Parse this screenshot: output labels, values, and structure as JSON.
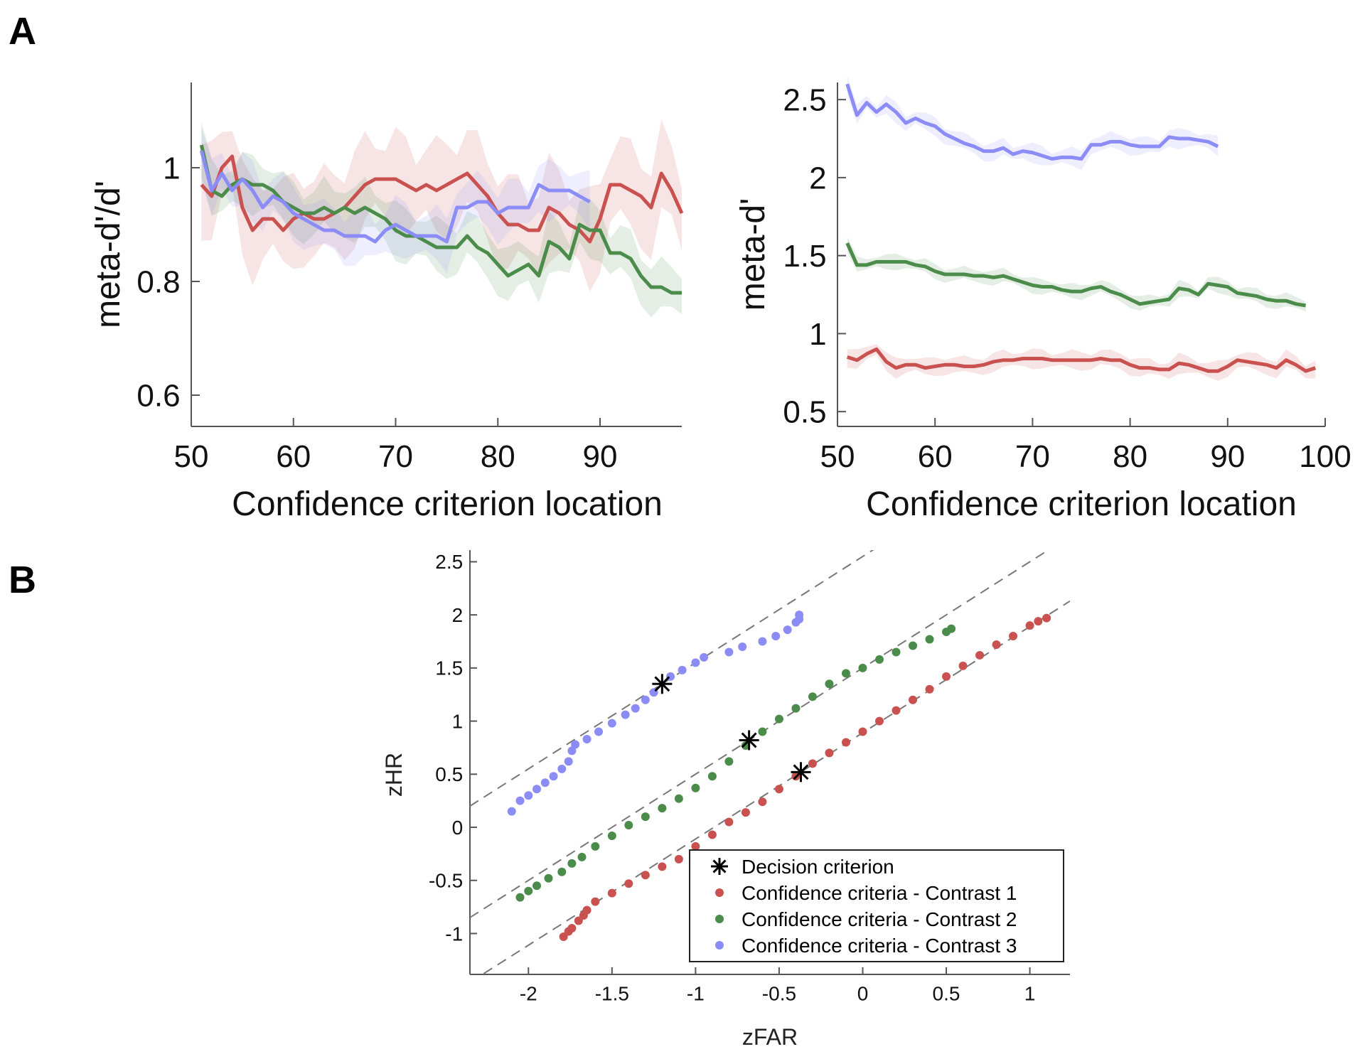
{
  "panels": {
    "a": "A",
    "b": "B"
  },
  "colors": {
    "contrast1": "#c9514f",
    "contrast2": "#4b8c4b",
    "contrast3": "#8c8cf7",
    "axis": "#444444"
  },
  "chart_data": [
    {
      "type": "line",
      "title": "",
      "xlabel": "Confidence criterion location",
      "ylabel": "meta-d'/d'",
      "xlim": [
        50,
        98
      ],
      "ylim": [
        0.545,
        1.15
      ],
      "xticks": [
        50,
        60,
        70,
        80,
        90
      ],
      "yticks": [
        0.6,
        0.8,
        1
      ],
      "x_start": 51,
      "series": [
        {
          "name": "Contrast 1",
          "color_key": "contrast1",
          "ci": 0.07,
          "values": [
            0.97,
            0.95,
            1.0,
            1.02,
            0.93,
            0.89,
            0.91,
            0.91,
            0.89,
            0.91,
            0.92,
            0.91,
            0.91,
            0.92,
            0.93,
            0.95,
            0.97,
            0.98,
            0.98,
            0.98,
            0.97,
            0.96,
            0.97,
            0.96,
            0.97,
            0.98,
            0.99,
            0.97,
            0.95,
            0.92,
            0.9,
            0.9,
            0.89,
            0.89,
            0.93,
            0.92,
            0.9,
            0.89,
            0.87,
            0.91,
            0.97,
            0.97,
            0.96,
            0.95,
            0.93,
            0.99,
            0.96,
            0.92
          ]
        },
        {
          "name": "Contrast 2",
          "color_key": "contrast2",
          "ci": 0.04,
          "values": [
            1.04,
            0.96,
            0.95,
            0.97,
            0.98,
            0.97,
            0.97,
            0.96,
            0.94,
            0.93,
            0.92,
            0.92,
            0.93,
            0.92,
            0.93,
            0.92,
            0.93,
            0.92,
            0.91,
            0.89,
            0.88,
            0.88,
            0.87,
            0.86,
            0.86,
            0.86,
            0.88,
            0.86,
            0.85,
            0.83,
            0.81,
            0.82,
            0.83,
            0.81,
            0.87,
            0.86,
            0.84,
            0.9,
            0.89,
            0.89,
            0.85,
            0.85,
            0.84,
            0.81,
            0.79,
            0.79,
            0.78,
            0.78
          ]
        },
        {
          "name": "Contrast 3",
          "color_key": "contrast3",
          "ci": 0.04,
          "values": [
            1.03,
            0.96,
            0.99,
            0.96,
            0.98,
            0.96,
            0.93,
            0.95,
            0.94,
            0.92,
            0.91,
            0.9,
            0.89,
            0.89,
            0.88,
            0.88,
            0.88,
            0.87,
            0.89,
            0.9,
            0.89,
            0.88,
            0.88,
            0.88,
            0.87,
            0.93,
            0.93,
            0.94,
            0.94,
            0.92,
            0.93,
            0.93,
            0.93,
            0.97,
            0.96,
            0.96,
            0.96,
            0.95,
            0.94
          ]
        }
      ]
    },
    {
      "type": "line",
      "title": "",
      "xlabel": "Confidence criterion location",
      "ylabel": "meta-d'",
      "xlim": [
        50,
        100
      ],
      "ylim": [
        0.405,
        2.61
      ],
      "xticks": [
        50,
        60,
        70,
        80,
        90,
        100
      ],
      "yticks": [
        0.5,
        1,
        1.5,
        2,
        2.5
      ],
      "x_start": 51,
      "series": [
        {
          "name": "Contrast 1",
          "color_key": "contrast1",
          "ci": 0.05,
          "values": [
            0.85,
            0.83,
            0.87,
            0.9,
            0.82,
            0.78,
            0.8,
            0.8,
            0.78,
            0.79,
            0.8,
            0.8,
            0.79,
            0.79,
            0.8,
            0.82,
            0.83,
            0.83,
            0.84,
            0.84,
            0.84,
            0.83,
            0.83,
            0.83,
            0.83,
            0.83,
            0.84,
            0.83,
            0.83,
            0.8,
            0.78,
            0.78,
            0.77,
            0.77,
            0.81,
            0.8,
            0.78,
            0.76,
            0.76,
            0.79,
            0.83,
            0.82,
            0.81,
            0.8,
            0.78,
            0.83,
            0.8,
            0.76,
            0.78
          ]
        },
        {
          "name": "Contrast 2",
          "color_key": "contrast2",
          "ci": 0.04,
          "values": [
            1.58,
            1.44,
            1.44,
            1.46,
            1.46,
            1.46,
            1.46,
            1.44,
            1.43,
            1.4,
            1.38,
            1.38,
            1.38,
            1.37,
            1.37,
            1.36,
            1.37,
            1.35,
            1.33,
            1.31,
            1.3,
            1.3,
            1.28,
            1.27,
            1.27,
            1.29,
            1.3,
            1.27,
            1.25,
            1.22,
            1.19,
            1.2,
            1.21,
            1.22,
            1.29,
            1.28,
            1.25,
            1.32,
            1.31,
            1.3,
            1.26,
            1.25,
            1.24,
            1.22,
            1.21,
            1.21,
            1.19,
            1.18
          ]
        },
        {
          "name": "Contrast 3",
          "color_key": "contrast3",
          "ci": 0.05,
          "values": [
            2.6,
            2.4,
            2.48,
            2.42,
            2.47,
            2.42,
            2.35,
            2.38,
            2.35,
            2.33,
            2.28,
            2.25,
            2.22,
            2.2,
            2.17,
            2.17,
            2.19,
            2.15,
            2.17,
            2.16,
            2.14,
            2.12,
            2.13,
            2.13,
            2.12,
            2.21,
            2.21,
            2.23,
            2.23,
            2.21,
            2.2,
            2.2,
            2.2,
            2.26,
            2.25,
            2.25,
            2.24,
            2.23,
            2.2
          ]
        }
      ]
    },
    {
      "type": "scatter",
      "title": "",
      "xlabel": "zFAR",
      "ylabel": "zHR",
      "xlim": [
        -2.35,
        1.24
      ],
      "ylim": [
        -1.385,
        2.61
      ],
      "xticks": [
        -2,
        -1.5,
        -1,
        -0.5,
        0,
        0.5,
        1
      ],
      "yticks": [
        -1,
        -0.5,
        0,
        0.5,
        1,
        1.5,
        2,
        2.5
      ],
      "legend_position": "bottom-right",
      "legend": [
        "Decision criterion",
        "Confidence criteria - Contrast 1",
        "Confidence criteria - Contrast 2",
        "Confidence criteria - Contrast 3"
      ],
      "reference_lines": [
        {
          "slope": 1,
          "intercept": 2.55,
          "color_key": "contrast3"
        },
        {
          "slope": 1,
          "intercept": 1.5,
          "color_key": "contrast2"
        },
        {
          "slope": 1,
          "intercept": 0.89,
          "color_key": "contrast1"
        }
      ],
      "decision_criteria": [
        [
          -1.2,
          1.35
        ],
        [
          -0.68,
          0.82
        ],
        [
          -0.37,
          0.52
        ]
      ],
      "series": [
        {
          "name": "Confidence criteria - Contrast 1",
          "color_key": "contrast1",
          "points": [
            [
              -1.79,
              -1.03
            ],
            [
              -1.76,
              -0.98
            ],
            [
              -1.74,
              -0.95
            ],
            [
              -1.7,
              -0.88
            ],
            [
              -1.67,
              -0.83
            ],
            [
              -1.65,
              -0.78
            ],
            [
              -1.6,
              -0.7
            ],
            [
              -1.5,
              -0.62
            ],
            [
              -1.4,
              -0.53
            ],
            [
              -1.3,
              -0.45
            ],
            [
              -1.2,
              -0.37
            ],
            [
              -1.1,
              -0.3
            ],
            [
              -1.0,
              -0.18
            ],
            [
              -0.9,
              -0.07
            ],
            [
              -0.8,
              0.05
            ],
            [
              -0.7,
              0.14
            ],
            [
              -0.6,
              0.24
            ],
            [
              -0.5,
              0.36
            ],
            [
              -0.4,
              0.48
            ],
            [
              -0.3,
              0.6
            ],
            [
              -0.2,
              0.7
            ],
            [
              -0.1,
              0.8
            ],
            [
              0.0,
              0.9
            ],
            [
              0.1,
              1.0
            ],
            [
              0.2,
              1.1
            ],
            [
              0.3,
              1.2
            ],
            [
              0.4,
              1.3
            ],
            [
              0.5,
              1.42
            ],
            [
              0.6,
              1.52
            ],
            [
              0.7,
              1.62
            ],
            [
              0.8,
              1.72
            ],
            [
              0.9,
              1.8
            ],
            [
              1.0,
              1.9
            ],
            [
              1.05,
              1.94
            ],
            [
              1.1,
              1.97
            ]
          ]
        },
        {
          "name": "Confidence criteria - Contrast 2",
          "color_key": "contrast2",
          "points": [
            [
              -2.05,
              -0.66
            ],
            [
              -2.0,
              -0.6
            ],
            [
              -1.95,
              -0.55
            ],
            [
              -1.88,
              -0.48
            ],
            [
              -1.8,
              -0.42
            ],
            [
              -1.74,
              -0.34
            ],
            [
              -1.68,
              -0.28
            ],
            [
              -1.6,
              -0.18
            ],
            [
              -1.5,
              -0.08
            ],
            [
              -1.4,
              0.02
            ],
            [
              -1.3,
              0.1
            ],
            [
              -1.2,
              0.18
            ],
            [
              -1.1,
              0.27
            ],
            [
              -1.0,
              0.37
            ],
            [
              -0.9,
              0.48
            ],
            [
              -0.8,
              0.62
            ],
            [
              -0.7,
              0.77
            ],
            [
              -0.6,
              0.9
            ],
            [
              -0.5,
              1.02
            ],
            [
              -0.4,
              1.12
            ],
            [
              -0.3,
              1.23
            ],
            [
              -0.2,
              1.35
            ],
            [
              -0.1,
              1.45
            ],
            [
              0.0,
              1.5
            ],
            [
              0.1,
              1.58
            ],
            [
              0.2,
              1.65
            ],
            [
              0.3,
              1.71
            ],
            [
              0.4,
              1.77
            ],
            [
              0.5,
              1.84
            ],
            [
              0.53,
              1.87
            ]
          ]
        },
        {
          "name": "Confidence criteria - Contrast 3",
          "color_key": "contrast3",
          "points": [
            [
              -2.1,
              0.15
            ],
            [
              -2.05,
              0.25
            ],
            [
              -2.0,
              0.3
            ],
            [
              -1.95,
              0.36
            ],
            [
              -1.9,
              0.42
            ],
            [
              -1.85,
              0.48
            ],
            [
              -1.8,
              0.55
            ],
            [
              -1.76,
              0.62
            ],
            [
              -1.74,
              0.72
            ],
            [
              -1.72,
              0.78
            ],
            [
              -1.65,
              0.83
            ],
            [
              -1.58,
              0.9
            ],
            [
              -1.5,
              0.98
            ],
            [
              -1.42,
              1.06
            ],
            [
              -1.36,
              1.12
            ],
            [
              -1.3,
              1.2
            ],
            [
              -1.25,
              1.27
            ],
            [
              -1.15,
              1.42
            ],
            [
              -1.08,
              1.48
            ],
            [
              -1.0,
              1.55
            ],
            [
              -0.95,
              1.6
            ],
            [
              -0.8,
              1.65
            ],
            [
              -0.72,
              1.7
            ],
            [
              -0.6,
              1.75
            ],
            [
              -0.52,
              1.8
            ],
            [
              -0.45,
              1.86
            ],
            [
              -0.4,
              1.93
            ],
            [
              -0.38,
              2.0
            ],
            [
              -0.38,
              1.96
            ]
          ]
        }
      ]
    }
  ]
}
